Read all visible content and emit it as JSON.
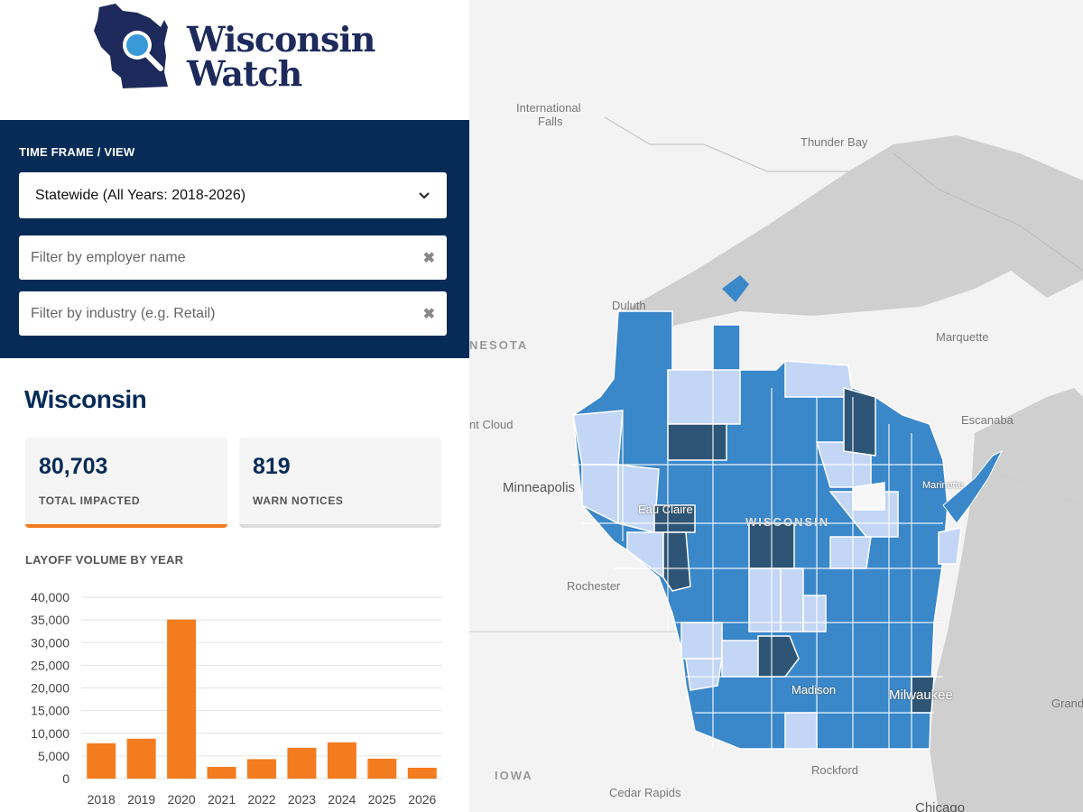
{
  "brand": {
    "line1": "Wisconsin",
    "line2": "Watch",
    "color": "#1d2a5b",
    "accent": "#3a9ad9"
  },
  "controls": {
    "timeframe_label": "TIME FRAME / VIEW",
    "timeframe_selected": "Statewide (All Years: 2018-2026)",
    "employer_placeholder": "Filter by employer name",
    "industry_placeholder": "Filter by industry (e.g. Retail)",
    "clear_glyph": "✖",
    "dropdown_glyph": "⌄"
  },
  "summary": {
    "region": "Wisconsin",
    "total_impacted": "80,703",
    "total_impacted_label": "TOTAL IMPACTED",
    "warn_notices": "819",
    "warn_notices_label": "WARN NOTICES"
  },
  "chart_data": {
    "type": "bar",
    "title": "LAYOFF VOLUME BY YEAR",
    "categories": [
      "2018",
      "2019",
      "2020",
      "2021",
      "2022",
      "2023",
      "2024",
      "2025",
      "2026"
    ],
    "values": [
      7800,
      8800,
      35100,
      2600,
      4300,
      6800,
      8000,
      4400,
      2400
    ],
    "ylim": [
      0,
      40000
    ],
    "yticks": [
      0,
      5000,
      10000,
      15000,
      20000,
      25000,
      30000,
      35000,
      40000
    ],
    "ytick_labels": [
      "0",
      "5,000",
      "10,000",
      "15,000",
      "20,000",
      "25,000",
      "30,000",
      "35,000",
      "40,000"
    ],
    "grid": true,
    "bar_color": "#f47c20"
  },
  "map": {
    "labels": {
      "international_falls_1": "International",
      "international_falls_2": "Falls",
      "thunder_bay": "Thunder Bay",
      "duluth": "Duluth",
      "minnesota": "NESOTA",
      "marquette": "Marquette",
      "st_cloud": "nt Cloud",
      "escanaba": "Escanaba",
      "minneapolis": "Minneapolis",
      "eau_claire": "Eau Claire",
      "wisconsin": "WISCONSIN",
      "marinette": "Marinette",
      "rochester": "Rochester",
      "madison": "Madison",
      "milwaukee": "Milwaukee",
      "grand": "Grand",
      "iowa": "IOWA",
      "rockford": "Rockford",
      "cedar_rapids": "Cedar Rapids",
      "chicago": "Chicago"
    },
    "colors": {
      "land": "#f3f3f3",
      "water": "#cfcfcf",
      "light": "#c3d6f5",
      "mid": "#3a87c9",
      "dark": "#2e5575",
      "white": "#f7f7f7"
    }
  }
}
